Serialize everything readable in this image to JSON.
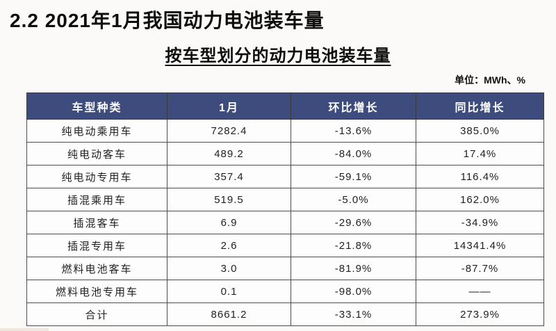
{
  "header": {
    "section_title": "2.2 2021年1月我国动力电池装车量",
    "table_title": "按车型划分的动力电池装车量",
    "unit_label": "单位：MWh、%"
  },
  "colors": {
    "header_bg": "#3e4c7d",
    "header_text": "#ffffff",
    "border": "#4d4d4d",
    "page_bg": "#fbfaf9",
    "text": "#1f1f1f"
  },
  "chart_data": {
    "type": "table",
    "title": "按车型划分的动力电池装车量",
    "unit": "MWh、%",
    "columns": [
      "车型种类",
      "1月",
      "环比增长",
      "同比增长"
    ],
    "rows": [
      {
        "category": "纯电动乘用车",
        "jan": "7282.4",
        "mom_growth": "-13.6%",
        "yoy_growth": "385.0%"
      },
      {
        "category": "纯电动客车",
        "jan": "489.2",
        "mom_growth": "-84.0%",
        "yoy_growth": "17.4%"
      },
      {
        "category": "纯电动专用车",
        "jan": "357.4",
        "mom_growth": "-59.1%",
        "yoy_growth": "116.4%"
      },
      {
        "category": "插混乘用车",
        "jan": "519.5",
        "mom_growth": "-5.0%",
        "yoy_growth": "162.0%"
      },
      {
        "category": "插混客车",
        "jan": "6.9",
        "mom_growth": "-29.6%",
        "yoy_growth": "-34.9%"
      },
      {
        "category": "插混专用车",
        "jan": "2.6",
        "mom_growth": "-21.8%",
        "yoy_growth": "14341.4%"
      },
      {
        "category": "燃料电池客车",
        "jan": "3.0",
        "mom_growth": "-81.9%",
        "yoy_growth": "-87.7%"
      },
      {
        "category": "燃料电池专用车",
        "jan": "0.1",
        "mom_growth": "-98.0%",
        "yoy_growth": "——"
      },
      {
        "category": "合计",
        "jan": "8661.2",
        "mom_growth": "-33.1%",
        "yoy_growth": "273.9%"
      }
    ]
  }
}
